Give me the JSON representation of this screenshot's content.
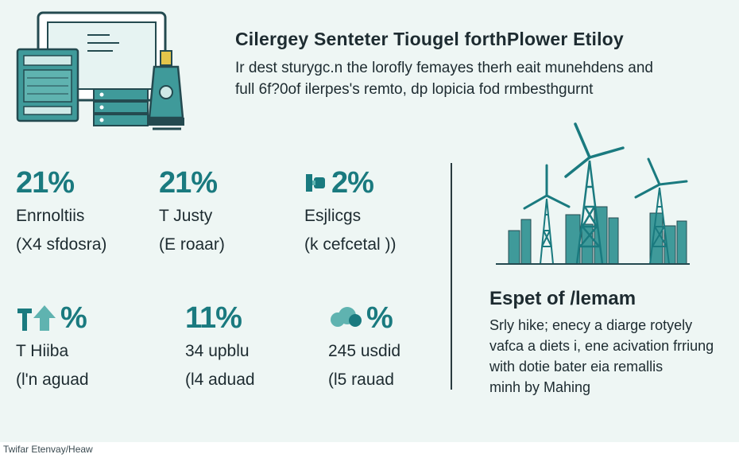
{
  "header": {
    "title": "Cilergey Senteter Tiougel forthPlower Etiloy",
    "subtitle_line1": "Ir dest sturygc.n the lorofly femayes therh eait munehdens and",
    "subtitle_line2": "full 6f?0of ilerpes's remto, dp lopicia fod rmbesthgurnt"
  },
  "stats": [
    {
      "value": "21%",
      "label": "Enrnoltiis",
      "sub": "(X4 sfdosra)",
      "icon": "none"
    },
    {
      "value": "21%",
      "label": "T Justy",
      "sub": "(E roaar)",
      "icon": "none"
    },
    {
      "value": "2%",
      "label": "Esjlicgs",
      "sub": "(k cefcetal ))",
      "icon": "plug-icon"
    },
    {
      "value": "%",
      "label": "T Hiiba",
      "sub": "(l'n aguad",
      "icon": "arrow-up-icon"
    },
    {
      "value": "11%",
      "label": "34 upblu",
      "sub": "(l4 aduad",
      "icon": "none"
    },
    {
      "value": "%",
      "label": "245 usdid",
      "sub": "(l5 rauad",
      "icon": "cloud-icon"
    }
  ],
  "section": {
    "title": "Espet of /lemam",
    "body_line1": "Srly hike; enecy a diarge rotyely",
    "body_line2": "vafca a diets i, ene acivation frriung",
    "body_line3": "with dotie bater eia remallis",
    "body_line4": "minh by Mahing"
  },
  "footer": {
    "text": "Twifar Etenvay/Heaw"
  },
  "colors": {
    "accent": "#1a7a7f",
    "teal_light": "#5fb3b0",
    "text": "#1d2b30",
    "background": "#eef6f4"
  }
}
